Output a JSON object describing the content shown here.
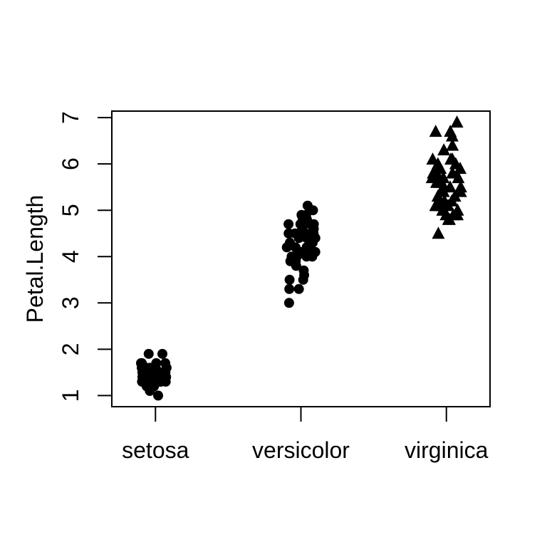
{
  "chart_data": {
    "type": "scatter",
    "subtype": "stripchart-jitter-vertical",
    "title": "",
    "xlabel": "",
    "ylabel": "Petal.Length",
    "categories": [
      "setosa",
      "versicolor",
      "virginica"
    ],
    "x_positions": [
      1,
      2,
      3
    ],
    "xlim": [
      0.7,
      3.3
    ],
    "ylim": [
      0.76,
      7.14
    ],
    "y_ticks": [
      1,
      2,
      3,
      4,
      5,
      6,
      7
    ],
    "grid": false,
    "legend": "none",
    "jitter_amount": 0.1,
    "series": [
      {
        "name": "setosa",
        "marker": "filled-circle",
        "x": 1,
        "values": [
          1.4,
          1.4,
          1.3,
          1.5,
          1.4,
          1.7,
          1.4,
          1.5,
          1.4,
          1.5,
          1.5,
          1.6,
          1.4,
          1.1,
          1.2,
          1.5,
          1.3,
          1.4,
          1.7,
          1.5,
          1.7,
          1.5,
          1.0,
          1.7,
          1.9,
          1.6,
          1.6,
          1.5,
          1.4,
          1.6,
          1.6,
          1.5,
          1.5,
          1.4,
          1.5,
          1.2,
          1.3,
          1.4,
          1.3,
          1.5,
          1.3,
          1.3,
          1.3,
          1.6,
          1.9,
          1.4,
          1.6,
          1.4,
          1.5,
          1.4
        ]
      },
      {
        "name": "versicolor",
        "marker": "filled-circle",
        "x": 2,
        "values": [
          4.7,
          4.5,
          4.9,
          4.0,
          4.6,
          4.5,
          4.7,
          3.3,
          4.6,
          3.9,
          3.5,
          4.2,
          4.0,
          4.7,
          3.6,
          4.4,
          4.5,
          4.1,
          4.5,
          3.9,
          4.8,
          4.0,
          4.9,
          4.7,
          4.3,
          4.4,
          4.8,
          5.0,
          4.5,
          3.5,
          3.8,
          3.7,
          3.9,
          5.1,
          4.5,
          4.5,
          4.7,
          4.4,
          4.1,
          4.0,
          4.4,
          4.6,
          4.0,
          3.3,
          4.2,
          4.2,
          4.2,
          4.3,
          3.0,
          4.1
        ]
      },
      {
        "name": "virginica",
        "marker": "filled-triangle-up",
        "x": 3,
        "values": [
          6.0,
          5.1,
          5.9,
          5.6,
          5.8,
          6.6,
          4.5,
          6.3,
          5.8,
          6.1,
          5.1,
          5.3,
          5.5,
          5.0,
          5.1,
          5.3,
          5.5,
          6.7,
          6.9,
          5.0,
          5.7,
          4.9,
          6.7,
          4.9,
          5.7,
          6.0,
          4.8,
          4.9,
          5.6,
          5.8,
          6.1,
          6.4,
          5.6,
          5.1,
          5.6,
          6.1,
          5.6,
          5.5,
          4.8,
          5.4,
          5.6,
          5.1,
          5.1,
          5.9,
          5.7,
          5.2,
          5.0,
          5.2,
          5.4,
          5.1
        ]
      }
    ],
    "colors": {
      "marker": "#000000",
      "axis": "#000000",
      "text": "#000000",
      "background": "#ffffff"
    }
  }
}
